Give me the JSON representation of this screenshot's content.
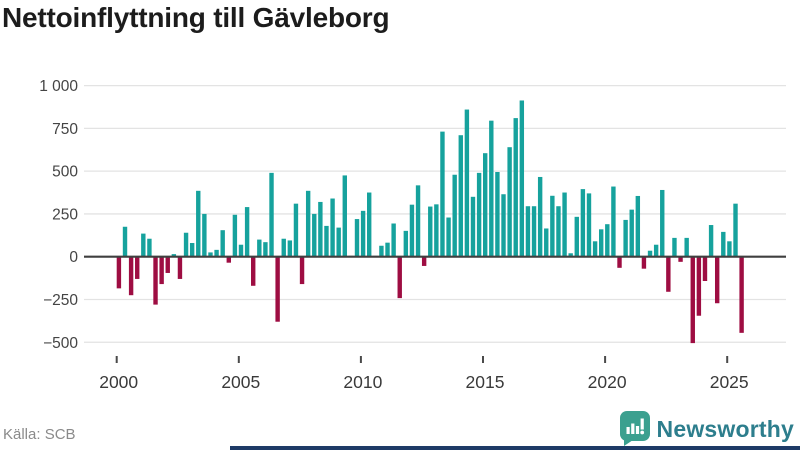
{
  "title": "Nettoinflyttning till Gävleborg",
  "source": "Källa: SCB",
  "branding": {
    "name": "Newsworthy"
  },
  "colors": {
    "positive": "#16a29d",
    "negative": "#9e0d42",
    "grid": "#e3e3e3",
    "zero_line": "#3f3f3f",
    "axis_text": "#444444",
    "x_axis_text": "#3a3a3a",
    "tick_mark": "#4a4a4a",
    "title_text": "#1c1c1c",
    "source_text": "#8a8a8a",
    "logo_badge": "#3ba08f",
    "logo_text": "#2d7e8d",
    "bottom_bar": "#1e3a66"
  },
  "chart_data": {
    "type": "bar",
    "title": "Nettoinflyttning till Gävleborg",
    "x_unit": "quarter",
    "start": "2000-Q1",
    "end": "2025-Q3",
    "values": [
      -185,
      175,
      -225,
      -130,
      135,
      105,
      -280,
      -160,
      -95,
      15,
      -130,
      140,
      80,
      385,
      250,
      25,
      40,
      155,
      -35,
      245,
      70,
      290,
      -170,
      100,
      85,
      490,
      -380,
      105,
      95,
      310,
      -160,
      385,
      250,
      320,
      180,
      340,
      170,
      475,
      5,
      220,
      268,
      375,
      5,
      64,
      82,
      194,
      -242,
      151,
      304,
      417,
      -54,
      293,
      306,
      731,
      229,
      479,
      710,
      860,
      350,
      490,
      605,
      795,
      495,
      365,
      640,
      810,
      913,
      295,
      295,
      466,
      165,
      356,
      295,
      375,
      20,
      233,
      395,
      370,
      90,
      160,
      190,
      410,
      -65,
      215,
      275,
      355,
      -70,
      35,
      70,
      390,
      -205,
      110,
      -30,
      110,
      -505,
      -345,
      -142,
      185,
      -272,
      145,
      90,
      310,
      -445
    ],
    "y_ticks": [
      "1 000",
      "750",
      "500",
      "250",
      "0",
      "−250",
      "−500"
    ],
    "y_tick_values": [
      1000,
      750,
      500,
      250,
      0,
      -250,
      -500
    ],
    "x_ticks": [
      "2000",
      "2005",
      "2010",
      "2015",
      "2020",
      "2025"
    ],
    "ylim": [
      -500,
      1000
    ],
    "grid": "on",
    "legend": "none"
  }
}
